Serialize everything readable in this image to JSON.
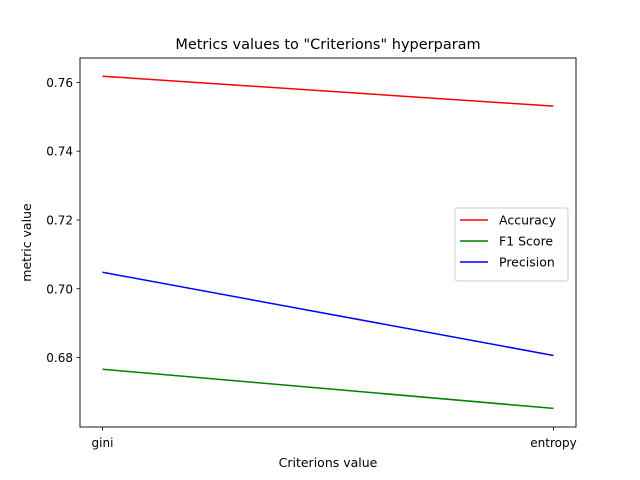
{
  "chart_data": {
    "type": "line",
    "title": "Metrics values to \"Criterions\" hyperparam",
    "xlabel": "Criterions value",
    "ylabel": "metric value",
    "categories": [
      "gini",
      "entropy"
    ],
    "ylim": [
      0.6598,
      0.7671
    ],
    "yticks": [
      0.68,
      0.7,
      0.72,
      0.74,
      0.76
    ],
    "ytick_labels": [
      "0.68",
      "0.70",
      "0.72",
      "0.74",
      "0.76"
    ],
    "grid": false,
    "legend": {
      "placement": "center-right"
    },
    "series": [
      {
        "name": "Accuracy",
        "color": "#ff0000",
        "values": [
          0.7618,
          0.7531
        ]
      },
      {
        "name": "F1 Score",
        "color": "#008000",
        "values": [
          0.6766,
          0.6652
        ]
      },
      {
        "name": "Precision",
        "color": "#0000ff",
        "values": [
          0.7048,
          0.6806
        ]
      }
    ]
  }
}
